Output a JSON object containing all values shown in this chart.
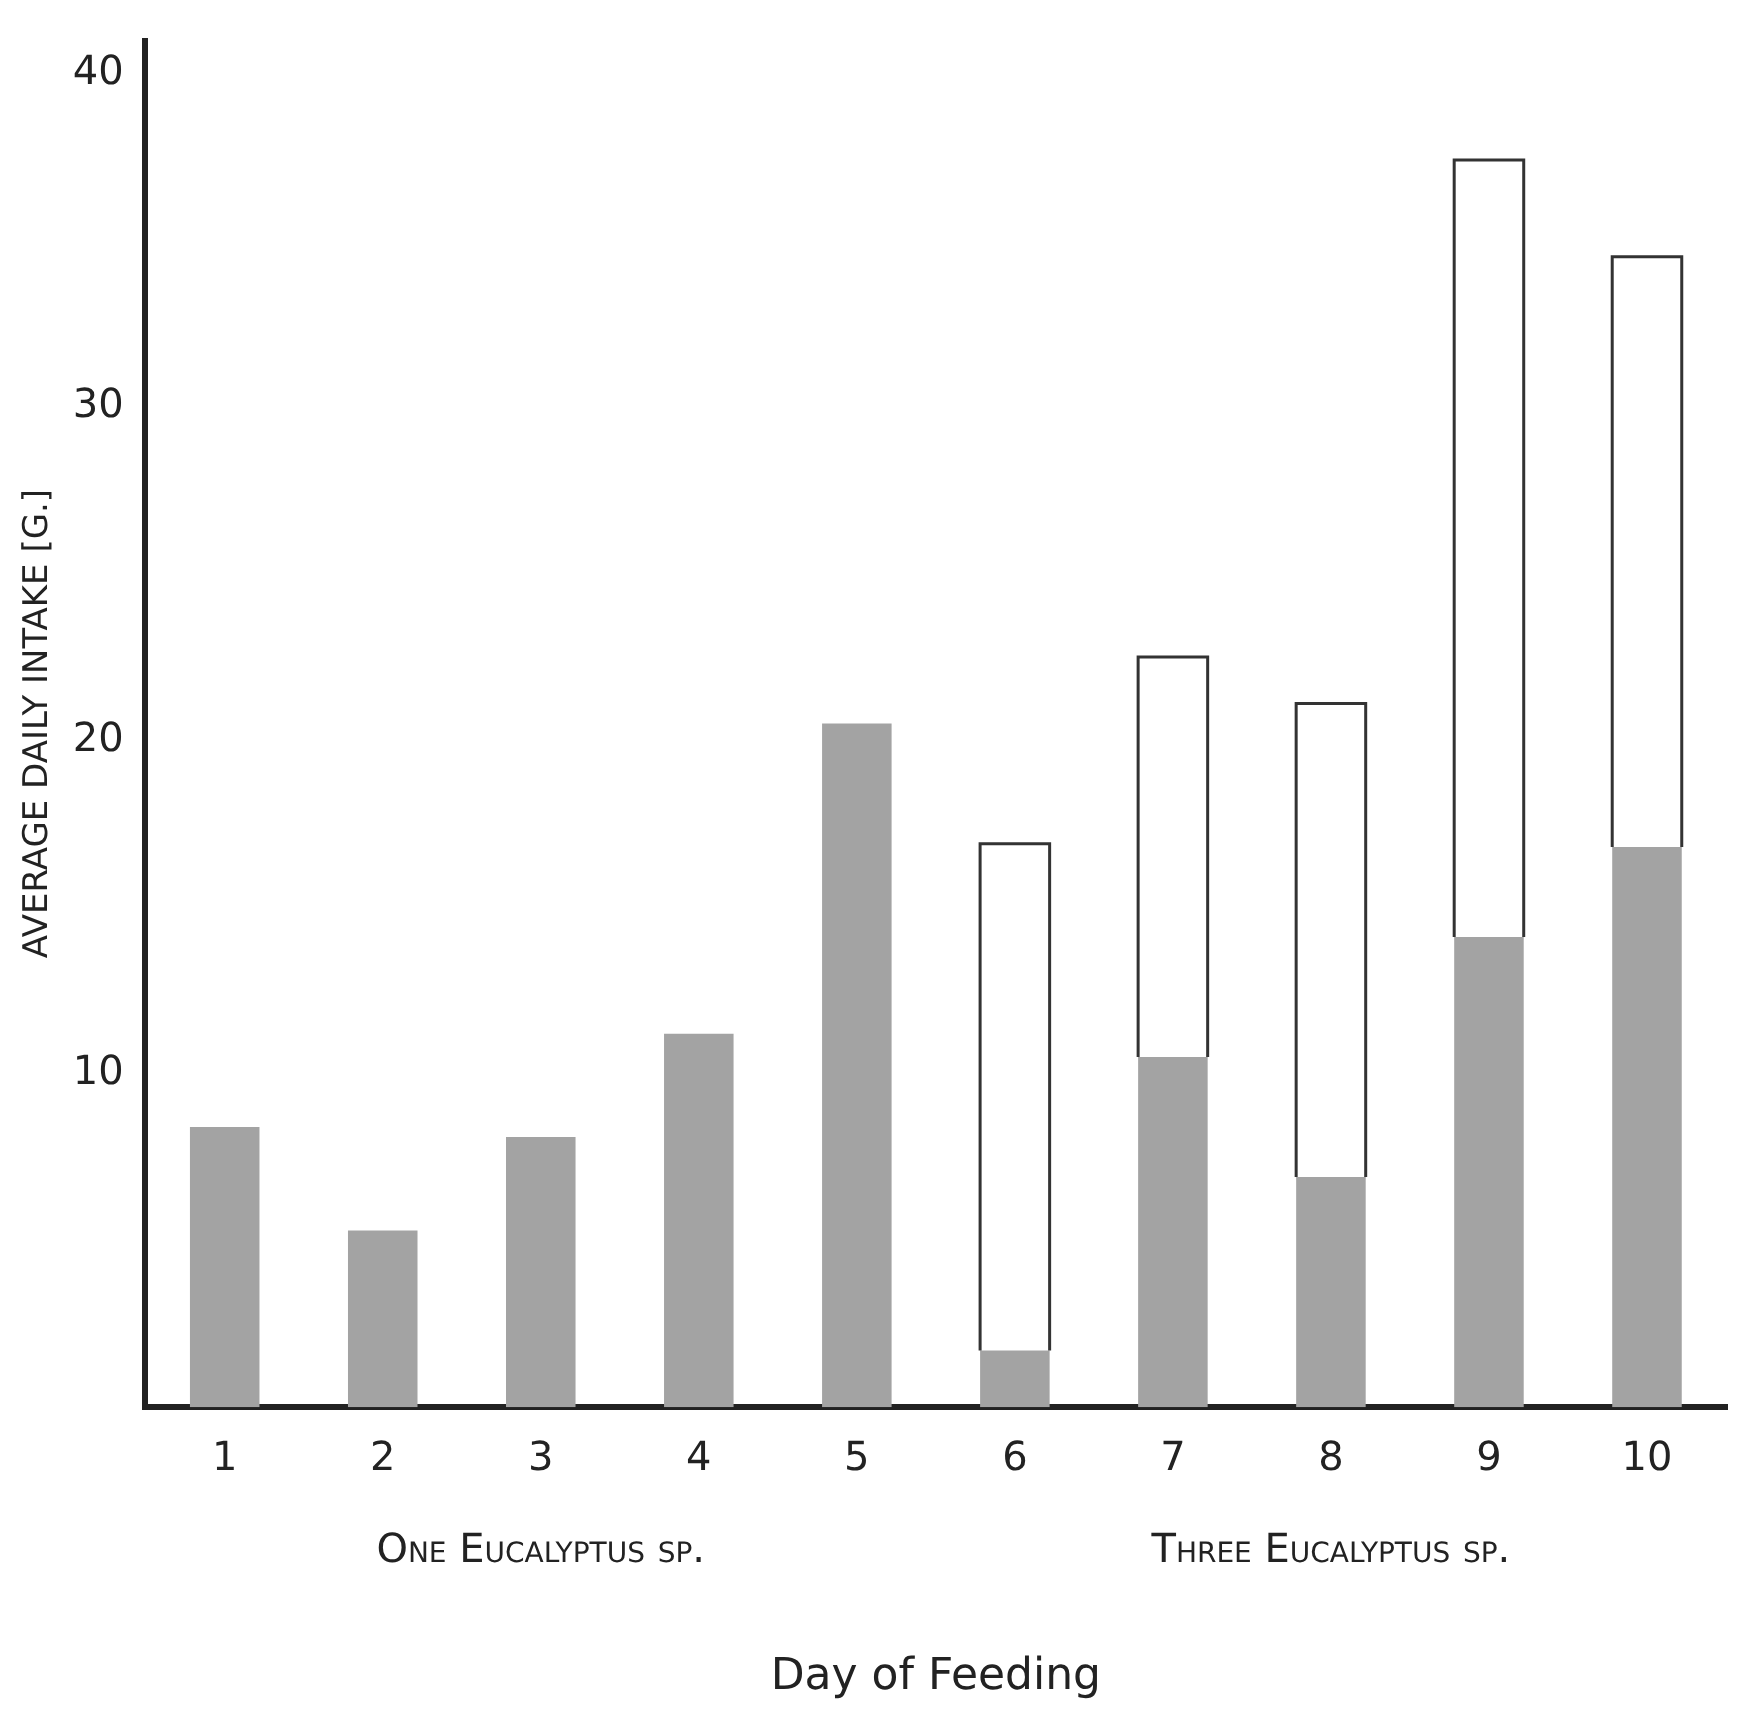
{
  "chart_data": {
    "type": "bar",
    "stacked": true,
    "xlabel": "Day of Feeding",
    "ylabel": "AVERAGE DAILY INTAKE [G.]",
    "categories": [
      "1",
      "2",
      "3",
      "4",
      "5",
      "6",
      "7",
      "8",
      "9",
      "10"
    ],
    "series": [
      {
        "color": "#a3a3a3",
        "values": [
          8.4,
          5.3,
          8.1,
          11.2,
          20.5,
          1.7,
          10.5,
          6.9,
          14.1,
          16.8
        ]
      },
      {
        "color": "#ffffff",
        "values": [
          null,
          null,
          null,
          null,
          null,
          15.2,
          12.0,
          14.2,
          23.3,
          17.7
        ]
      }
    ],
    "ylim": [
      0,
      41
    ],
    "yticks": [
      10,
      20,
      30,
      40
    ],
    "grid": false,
    "legend": false,
    "annotations": [
      "One Eucalyptus sp.",
      "Three Eucalyptus sp."
    ]
  }
}
